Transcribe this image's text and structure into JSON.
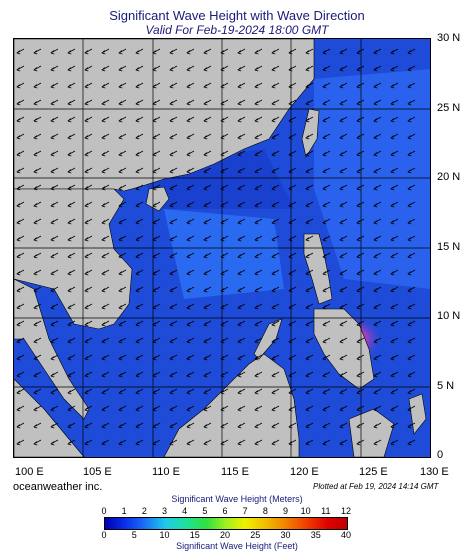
{
  "header": {
    "title": "Significant Wave Height with Wave Direction",
    "subtitle": "Valid For Feb-19-2024 18:00 GMT"
  },
  "map": {
    "latitude_labels": [
      "30 N",
      "25 N",
      "20 N",
      "15 N",
      "10 N",
      "5 N",
      "0"
    ],
    "longitude_labels": [
      "100 E",
      "105 E",
      "110 E",
      "115 E",
      "120 E",
      "125 E",
      "130 E"
    ],
    "colors": {
      "land": "#c0c0c0",
      "sea_low": "#1e4bd8",
      "sea_mid": "#2a72f0",
      "sea_high": "#f08000",
      "grid": "#000000"
    }
  },
  "footer": {
    "credit": "oceanweather inc.",
    "plotted": "Plotted at Feb 19, 2024 14:14 GMT"
  },
  "colorbar": {
    "title_meters": "Significant Wave Height (Meters)",
    "title_feet": "Significant Wave Height (Feet)",
    "meter_ticks": [
      "0",
      "1",
      "2",
      "3",
      "4",
      "5",
      "6",
      "7",
      "8",
      "9",
      "10",
      "11",
      "12"
    ],
    "feet_ticks": [
      "0",
      "5",
      "10",
      "15",
      "20",
      "25",
      "30",
      "35",
      "40"
    ]
  }
}
